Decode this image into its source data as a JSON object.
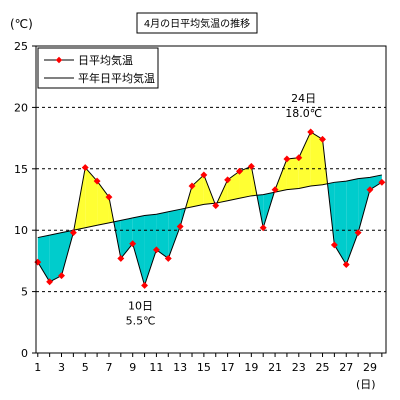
{
  "title": "4月の日平均気温の推移",
  "y_unit": "(℃)",
  "x_unit": "(日)",
  "colors": {
    "above_fill": "#ffff33",
    "below_fill": "#00cccc",
    "daily_line": "#000000",
    "daily_marker": "#ff0000",
    "normal_line": "#000000",
    "grid": "#000000",
    "title_border": "#000000"
  },
  "chart_data": {
    "type": "line",
    "title": "4月の日平均気温の推移",
    "ylabel": "(℃)",
    "xlabel": "(日)",
    "ylim": [
      0,
      25
    ],
    "yticks": [
      0,
      5,
      10,
      15,
      20,
      25
    ],
    "x": [
      1,
      2,
      3,
      4,
      5,
      6,
      7,
      8,
      9,
      10,
      11,
      12,
      13,
      14,
      15,
      16,
      17,
      18,
      19,
      20,
      21,
      22,
      23,
      24,
      25,
      26,
      27,
      28,
      29,
      30
    ],
    "xtick_labels": [
      "1",
      "3",
      "5",
      "7",
      "9",
      "11",
      "13",
      "15",
      "17",
      "19",
      "21",
      "23",
      "25",
      "27",
      "29"
    ],
    "grid": "horizontal dashed",
    "legend_position": "top-left",
    "series": [
      {
        "name": "日平均気温",
        "values": [
          7.4,
          5.8,
          6.3,
          9.8,
          15.1,
          14.0,
          12.7,
          7.7,
          8.9,
          5.5,
          8.4,
          7.7,
          10.3,
          13.6,
          14.5,
          12.0,
          14.1,
          14.8,
          15.2,
          10.2,
          13.3,
          15.8,
          15.9,
          18.0,
          17.4,
          8.8,
          7.2,
          9.8,
          13.3,
          13.9
        ]
      },
      {
        "name": "平年日平均気温",
        "values": [
          9.4,
          9.6,
          9.8,
          10.0,
          10.2,
          10.4,
          10.6,
          10.8,
          11.0,
          11.2,
          11.3,
          11.5,
          11.7,
          11.9,
          12.1,
          12.2,
          12.4,
          12.6,
          12.8,
          12.9,
          13.1,
          13.3,
          13.4,
          13.6,
          13.7,
          13.9,
          14.0,
          14.2,
          14.3,
          14.5
        ]
      }
    ],
    "annotations": [
      {
        "day_label": "24日",
        "value_label": "18.0℃",
        "x": 24,
        "y": 18.0,
        "placement": "above"
      },
      {
        "day_label": "10日",
        "value_label": "5.5℃",
        "x": 10,
        "y": 5.5,
        "placement": "below"
      }
    ]
  }
}
